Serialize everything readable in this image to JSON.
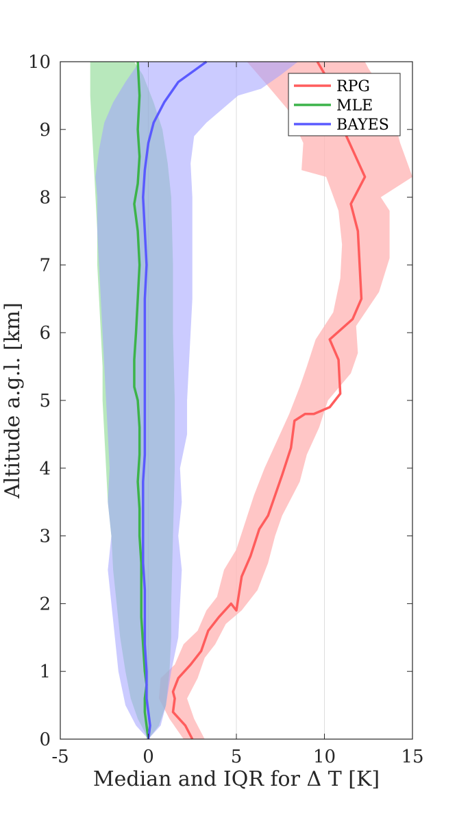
{
  "chart_data": {
    "type": "line",
    "xlabel": "Median and IQR for Δ T [K]",
    "ylabel": "Altitude  a.g.l. [km]",
    "xlim": [
      -5,
      15
    ],
    "ylim": [
      0,
      10
    ],
    "xticks": [
      -5,
      0,
      5,
      10,
      15
    ],
    "yticks": [
      0,
      1,
      2,
      3,
      4,
      5,
      6,
      7,
      8,
      9,
      10
    ],
    "grid": "vertical lines at x ticks",
    "legend_position": "top-right",
    "series": [
      {
        "name": "RPG",
        "color": "#ff5c5c",
        "band_color": "#ffb3b3",
        "band_opacity": 0.75,
        "median": [
          [
            2.5,
            0
          ],
          [
            2.1,
            0.2
          ],
          [
            1.4,
            0.4
          ],
          [
            1.5,
            0.6
          ],
          [
            1.4,
            0.7
          ],
          [
            1.7,
            0.9
          ],
          [
            2.4,
            1.1
          ],
          [
            3.0,
            1.3
          ],
          [
            3.4,
            1.6
          ],
          [
            4.0,
            1.8
          ],
          [
            4.7,
            2.0
          ],
          [
            5.0,
            1.9
          ],
          [
            5.3,
            2.4
          ],
          [
            5.8,
            2.7
          ],
          [
            6.3,
            3.1
          ],
          [
            6.8,
            3.3
          ],
          [
            7.2,
            3.6
          ],
          [
            7.6,
            3.9
          ],
          [
            8.1,
            4.3
          ],
          [
            8.3,
            4.7
          ],
          [
            8.9,
            4.8
          ],
          [
            9.4,
            4.8
          ],
          [
            10.3,
            4.9
          ],
          [
            10.9,
            5.1
          ],
          [
            10.8,
            5.6
          ],
          [
            10.3,
            5.9
          ],
          [
            11.6,
            6.2
          ],
          [
            12.1,
            6.5
          ],
          [
            12.0,
            7.0
          ],
          [
            11.9,
            7.5
          ],
          [
            11.5,
            7.9
          ],
          [
            12.3,
            8.3
          ],
          [
            11.6,
            8.7
          ],
          [
            10.9,
            9.1
          ],
          [
            10.5,
            9.6
          ],
          [
            9.6,
            10.0
          ]
        ],
        "q1": [
          [
            2.0,
            0
          ],
          [
            1.2,
            0.3
          ],
          [
            0.6,
            0.6
          ],
          [
            0.7,
            0.9
          ],
          [
            1.5,
            1.1
          ],
          [
            2.0,
            1.4
          ],
          [
            2.8,
            1.6
          ],
          [
            3.3,
            1.9
          ],
          [
            3.9,
            2.1
          ],
          [
            4.3,
            2.5
          ],
          [
            5.0,
            2.8
          ],
          [
            5.5,
            3.2
          ],
          [
            6.0,
            3.6
          ],
          [
            6.6,
            4.0
          ],
          [
            7.3,
            4.4
          ],
          [
            8.0,
            4.8
          ],
          [
            8.6,
            5.2
          ],
          [
            9.0,
            5.5
          ],
          [
            9.5,
            5.9
          ],
          [
            10.5,
            6.3
          ],
          [
            10.9,
            6.8
          ],
          [
            11.0,
            7.3
          ],
          [
            10.8,
            7.8
          ],
          [
            10.1,
            8.3
          ],
          [
            8.7,
            8.4
          ],
          [
            8.8,
            8.8
          ],
          [
            7.9,
            9.3
          ],
          [
            6.6,
            9.7
          ],
          [
            5.6,
            10.0
          ]
        ],
        "q3": [
          [
            3.2,
            0
          ],
          [
            2.6,
            0.3
          ],
          [
            2.2,
            0.6
          ],
          [
            2.8,
            0.9
          ],
          [
            3.2,
            1.2
          ],
          [
            3.8,
            1.4
          ],
          [
            4.4,
            1.7
          ],
          [
            5.3,
            1.9
          ],
          [
            6.2,
            2.2
          ],
          [
            6.8,
            2.6
          ],
          [
            7.2,
            3.0
          ],
          [
            7.6,
            3.3
          ],
          [
            8.2,
            3.6
          ],
          [
            8.6,
            3.8
          ],
          [
            9.0,
            4.2
          ],
          [
            9.7,
            4.6
          ],
          [
            10.2,
            5.0
          ],
          [
            11.5,
            5.4
          ],
          [
            11.9,
            5.7
          ],
          [
            11.8,
            6.1
          ],
          [
            13.1,
            6.6
          ],
          [
            13.7,
            7.1
          ],
          [
            13.7,
            7.8
          ],
          [
            13.2,
            8.0
          ],
          [
            15.0,
            8.3
          ],
          [
            14.3,
            8.8
          ],
          [
            14.0,
            9.1
          ],
          [
            13.8,
            9.4
          ],
          [
            12.5,
            9.9
          ],
          [
            12.3,
            10.0
          ]
        ]
      },
      {
        "name": "MLE",
        "color": "#3cb34a",
        "band_color": "#88d890",
        "band_opacity": 0.6,
        "median": [
          [
            0,
            0
          ],
          [
            -0.1,
            0.2
          ],
          [
            -0.2,
            0.4
          ],
          [
            -0.2,
            0.6
          ],
          [
            -0.1,
            0.8
          ],
          [
            -0.2,
            1.0
          ],
          [
            -0.3,
            1.4
          ],
          [
            -0.4,
            1.8
          ],
          [
            -0.4,
            2.2
          ],
          [
            -0.4,
            2.6
          ],
          [
            -0.5,
            3.0
          ],
          [
            -0.5,
            3.4
          ],
          [
            -0.6,
            3.8
          ],
          [
            -0.5,
            4.2
          ],
          [
            -0.5,
            4.6
          ],
          [
            -0.6,
            5.0
          ],
          [
            -0.8,
            5.2
          ],
          [
            -0.8,
            5.6
          ],
          [
            -0.7,
            6.0
          ],
          [
            -0.6,
            6.5
          ],
          [
            -0.5,
            7.0
          ],
          [
            -0.6,
            7.5
          ],
          [
            -0.8,
            7.9
          ],
          [
            -0.6,
            8.2
          ],
          [
            -0.5,
            8.6
          ],
          [
            -0.6,
            9.0
          ],
          [
            -0.5,
            9.5
          ],
          [
            -0.6,
            10.0
          ]
        ],
        "q1": [
          [
            0,
            0
          ],
          [
            -0.6,
            0.3
          ],
          [
            -1.0,
            0.6
          ],
          [
            -1.3,
            1.0
          ],
          [
            -1.6,
            1.5
          ],
          [
            -1.8,
            2.0
          ],
          [
            -2.0,
            2.5
          ],
          [
            -2.1,
            3.0
          ],
          [
            -2.3,
            3.5
          ],
          [
            -2.4,
            4.0
          ],
          [
            -2.5,
            4.5
          ],
          [
            -2.6,
            5.0
          ],
          [
            -2.6,
            5.5
          ],
          [
            -2.7,
            6.0
          ],
          [
            -2.8,
            6.5
          ],
          [
            -2.9,
            7.0
          ],
          [
            -2.9,
            7.5
          ],
          [
            -3.0,
            8.0
          ],
          [
            -3.1,
            8.5
          ],
          [
            -3.2,
            9.0
          ],
          [
            -3.3,
            9.5
          ],
          [
            -3.3,
            10.0
          ]
        ],
        "q3": [
          [
            0,
            0
          ],
          [
            0.6,
            0.2
          ],
          [
            1.0,
            0.5
          ],
          [
            1.2,
            1.0
          ],
          [
            1.3,
            1.5
          ],
          [
            1.3,
            2.0
          ],
          [
            1.4,
            3.0
          ],
          [
            1.5,
            4.0
          ],
          [
            1.5,
            5.0
          ],
          [
            1.4,
            6.0
          ],
          [
            1.4,
            7.0
          ],
          [
            1.3,
            8.0
          ],
          [
            1.1,
            8.5
          ],
          [
            0.8,
            9.0
          ],
          [
            0.3,
            9.4
          ],
          [
            -0.3,
            9.8
          ],
          [
            -0.8,
            10.0
          ]
        ]
      },
      {
        "name": "BAYES",
        "color": "#5a5aff",
        "band_color": "#a0a0ff",
        "band_opacity": 0.55,
        "median": [
          [
            0,
            0
          ],
          [
            0.1,
            0.2
          ],
          [
            0.0,
            0.4
          ],
          [
            -0.1,
            0.6
          ],
          [
            -0.1,
            0.8
          ],
          [
            -0.1,
            1.0
          ],
          [
            -0.2,
            1.4
          ],
          [
            -0.2,
            1.8
          ],
          [
            -0.2,
            2.2
          ],
          [
            -0.3,
            2.6
          ],
          [
            -0.3,
            3.0
          ],
          [
            -0.3,
            3.4
          ],
          [
            -0.3,
            3.8
          ],
          [
            -0.2,
            4.2
          ],
          [
            -0.2,
            4.6
          ],
          [
            -0.2,
            5.0
          ],
          [
            -0.2,
            5.6
          ],
          [
            -0.2,
            6.0
          ],
          [
            -0.2,
            6.5
          ],
          [
            -0.1,
            7.0
          ],
          [
            -0.2,
            7.5
          ],
          [
            -0.3,
            8.0
          ],
          [
            -0.2,
            8.4
          ],
          [
            0.0,
            8.8
          ],
          [
            0.3,
            9.1
          ],
          [
            0.9,
            9.4
          ],
          [
            1.7,
            9.7
          ],
          [
            3.3,
            10.0
          ]
        ],
        "q1": [
          [
            0,
            0
          ],
          [
            -0.7,
            0.2
          ],
          [
            -1.3,
            0.5
          ],
          [
            -1.7,
            1.0
          ],
          [
            -1.9,
            1.5
          ],
          [
            -2.1,
            2.0
          ],
          [
            -2.3,
            2.5
          ],
          [
            -2.1,
            3.0
          ],
          [
            -2.3,
            3.5
          ],
          [
            -2.2,
            4.0
          ],
          [
            -2.3,
            4.5
          ],
          [
            -2.4,
            5.0
          ],
          [
            -2.5,
            5.5
          ],
          [
            -2.6,
            6.0
          ],
          [
            -2.7,
            6.5
          ],
          [
            -2.8,
            7.0
          ],
          [
            -2.9,
            7.5
          ],
          [
            -2.9,
            8.0
          ],
          [
            -3.0,
            8.3
          ],
          [
            -2.8,
            8.7
          ],
          [
            -2.5,
            9.1
          ],
          [
            -2.0,
            9.4
          ],
          [
            -1.3,
            9.7
          ],
          [
            -0.5,
            10.0
          ]
        ],
        "q3": [
          [
            0,
            0
          ],
          [
            0.7,
            0.2
          ],
          [
            1.0,
            0.5
          ],
          [
            1.3,
            1.0
          ],
          [
            1.7,
            1.5
          ],
          [
            1.8,
            2.0
          ],
          [
            1.9,
            2.5
          ],
          [
            1.7,
            3.0
          ],
          [
            1.9,
            3.5
          ],
          [
            1.8,
            4.0
          ],
          [
            2.2,
            4.5
          ],
          [
            2.2,
            5.0
          ],
          [
            2.3,
            5.5
          ],
          [
            2.4,
            6.0
          ],
          [
            2.5,
            6.5
          ],
          [
            2.5,
            7.0
          ],
          [
            2.5,
            7.5
          ],
          [
            2.5,
            8.0
          ],
          [
            2.4,
            8.5
          ],
          [
            2.6,
            8.9
          ],
          [
            3.3,
            9.1
          ],
          [
            4.2,
            9.3
          ],
          [
            5.1,
            9.5
          ],
          [
            6.4,
            9.6
          ],
          [
            7.5,
            9.8
          ],
          [
            8.5,
            10.0
          ]
        ]
      }
    ]
  }
}
